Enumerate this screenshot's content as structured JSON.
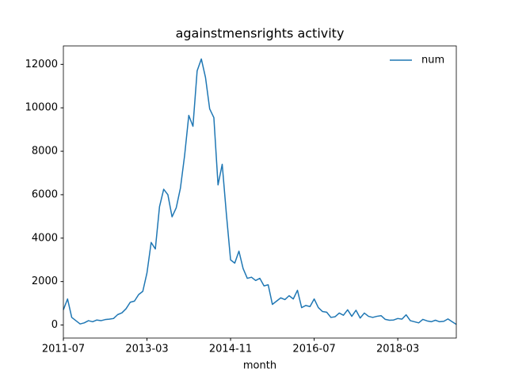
{
  "chart_data": {
    "type": "line",
    "title": "againstmensrights activity",
    "xlabel": "month",
    "x": [
      "2011-07",
      "2011-08",
      "2011-09",
      "2011-10",
      "2011-11",
      "2011-12",
      "2012-01",
      "2012-02",
      "2012-03",
      "2012-04",
      "2012-05",
      "2012-06",
      "2012-07",
      "2012-08",
      "2012-09",
      "2012-10",
      "2012-11",
      "2012-12",
      "2013-01",
      "2013-02",
      "2013-03",
      "2013-04",
      "2013-05",
      "2013-06",
      "2013-07",
      "2013-08",
      "2013-09",
      "2013-10",
      "2013-11",
      "2013-12",
      "2014-01",
      "2014-02",
      "2014-03",
      "2014-04",
      "2014-05",
      "2014-06",
      "2014-07",
      "2014-08",
      "2014-09",
      "2014-10",
      "2014-11",
      "2014-12",
      "2015-01",
      "2015-02",
      "2015-03",
      "2015-04",
      "2015-05",
      "2015-06",
      "2015-07",
      "2015-08",
      "2015-09",
      "2015-10",
      "2015-11",
      "2015-12",
      "2016-01",
      "2016-02",
      "2016-03",
      "2016-04",
      "2016-05",
      "2016-06",
      "2016-07",
      "2016-08",
      "2016-09",
      "2016-10",
      "2016-11",
      "2016-12",
      "2017-01",
      "2017-02",
      "2017-03",
      "2017-04",
      "2017-05",
      "2017-06",
      "2017-07",
      "2017-08",
      "2017-09",
      "2017-10",
      "2017-11",
      "2017-12",
      "2018-01",
      "2018-02",
      "2018-03",
      "2018-04",
      "2018-05",
      "2018-06",
      "2018-07",
      "2018-08",
      "2018-09",
      "2018-10",
      "2018-11",
      "2018-12",
      "2019-01",
      "2019-02",
      "2019-03",
      "2019-04",
      "2019-05"
    ],
    "series": [
      {
        "name": "num",
        "color": "#1f77b4",
        "values": [
          700,
          1200,
          350,
          200,
          50,
          100,
          200,
          150,
          230,
          200,
          250,
          270,
          300,
          480,
          560,
          750,
          1050,
          1100,
          1400,
          1550,
          2400,
          3800,
          3500,
          5450,
          6250,
          6000,
          4980,
          5400,
          6300,
          7800,
          9650,
          9150,
          11700,
          12250,
          11400,
          9950,
          9550,
          6450,
          7400,
          5100,
          3000,
          2850,
          3400,
          2600,
          2150,
          2200,
          2050,
          2150,
          1800,
          1850,
          950,
          1100,
          1250,
          1170,
          1350,
          1200,
          1600,
          800,
          900,
          850,
          1200,
          800,
          620,
          590,
          350,
          380,
          550,
          450,
          700,
          400,
          680,
          320,
          550,
          400,
          350,
          400,
          430,
          260,
          220,
          230,
          300,
          270,
          470,
          200,
          150,
          100,
          260,
          190,
          150,
          220,
          150,
          170,
          280,
          150,
          30
        ]
      }
    ],
    "xlim": [
      "2011-07",
      "2019-05"
    ],
    "xticks": [
      "2011-07",
      "2013-03",
      "2014-11",
      "2016-07",
      "2018-03"
    ],
    "ylim": [
      -600,
      12850
    ],
    "yticks": [
      0,
      2000,
      4000,
      6000,
      8000,
      10000,
      12000
    ],
    "legend": "upper right",
    "grid": false
  }
}
